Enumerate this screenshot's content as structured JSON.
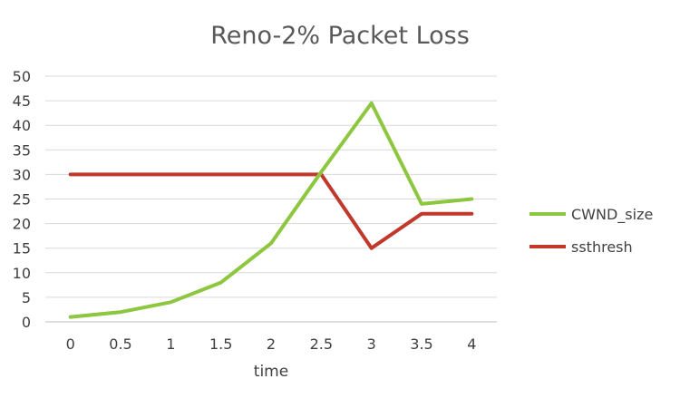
{
  "chart_data": {
    "type": "line",
    "title": "Reno-2% Packet Loss",
    "xlabel": "time",
    "ylabel": "",
    "x": [
      0,
      0.5,
      1,
      1.5,
      2,
      2.5,
      3,
      3.5,
      4
    ],
    "x_tick_labels": [
      "0",
      "0.5",
      "1",
      "1.5",
      "2",
      "2.5",
      "3",
      "3.5",
      "4"
    ],
    "ylim": [
      0,
      50
    ],
    "y_ticks": [
      0,
      5,
      10,
      15,
      20,
      25,
      30,
      35,
      40,
      45,
      50
    ],
    "grid": true,
    "legend_position": "right",
    "series": [
      {
        "name": "CWND_size",
        "color": "#8DC63F",
        "values": [
          1,
          2,
          4,
          8,
          16,
          30.5,
          44.5,
          24,
          25
        ]
      },
      {
        "name": "ssthresh",
        "color": "#C0392B",
        "values": [
          30,
          30,
          30,
          30,
          30,
          30,
          15,
          22,
          22
        ]
      }
    ]
  }
}
